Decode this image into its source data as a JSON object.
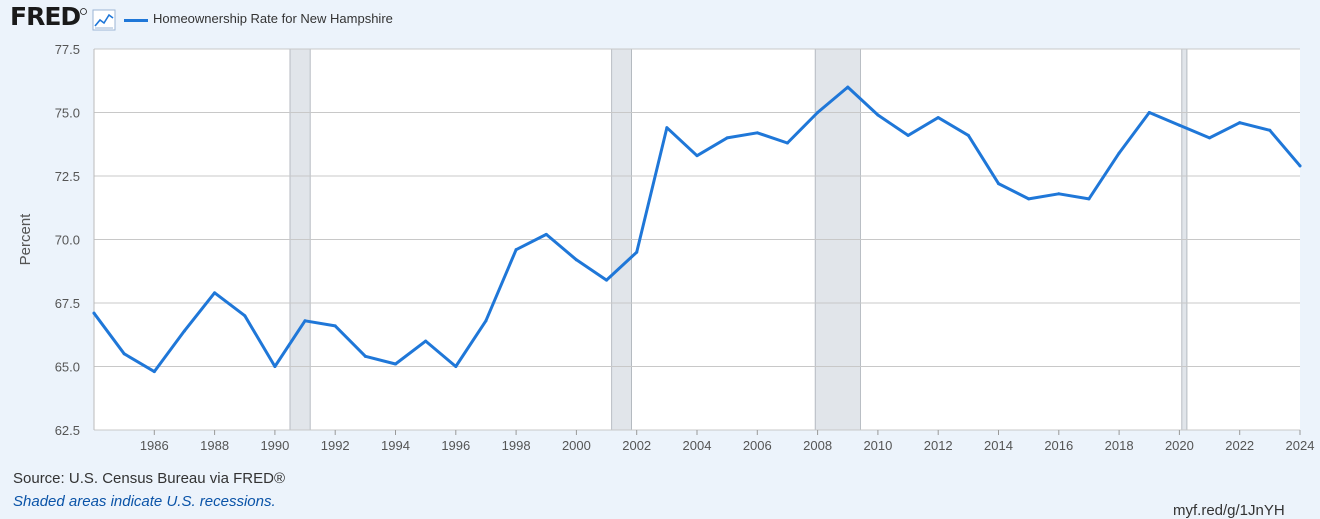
{
  "header": {
    "logo_text": "FRED",
    "series_label": "Homeownership Rate for New Hampshire"
  },
  "colors": {
    "line": "#1f77d8",
    "recession": "#e1e5ea",
    "grid": "#c8c8c8",
    "background": "#ecf3fb",
    "plot_background": "#ffffff"
  },
  "icons": {
    "logo_icon": "line-chart-icon"
  },
  "chart_data": {
    "type": "line",
    "title": "Homeownership Rate for New Hampshire",
    "xlabel": "",
    "ylabel": "Percent",
    "xlim": [
      1984,
      2024
    ],
    "ylim": [
      62.5,
      77.5
    ],
    "y_ticks": [
      "62.5",
      "65.0",
      "67.5",
      "70.0",
      "72.5",
      "75.0",
      "77.5"
    ],
    "x_ticks": [
      "1986",
      "1988",
      "1990",
      "1992",
      "1994",
      "1996",
      "1998",
      "2000",
      "2002",
      "2004",
      "2006",
      "2008",
      "2010",
      "2012",
      "2014",
      "2016",
      "2018",
      "2020",
      "2022",
      "2024"
    ],
    "grid": true,
    "legend": "top-left",
    "series": [
      {
        "name": "Homeownership Rate for New Hampshire",
        "x": [
          1984,
          1985,
          1986,
          1987,
          1988,
          1989,
          1990,
          1991,
          1992,
          1993,
          1994,
          1995,
          1996,
          1997,
          1998,
          1999,
          2000,
          2001,
          2002,
          2003,
          2004,
          2005,
          2006,
          2007,
          2008,
          2009,
          2010,
          2011,
          2012,
          2013,
          2014,
          2015,
          2016,
          2017,
          2018,
          2019,
          2020,
          2021,
          2022,
          2023,
          2024
        ],
        "values": [
          67.1,
          65.5,
          64.8,
          66.4,
          67.9,
          67.0,
          65.0,
          66.8,
          66.6,
          65.4,
          65.1,
          66.0,
          65.0,
          66.8,
          69.6,
          70.2,
          69.2,
          68.4,
          69.5,
          74.4,
          73.3,
          74.0,
          74.2,
          73.8,
          75.0,
          76.0,
          74.9,
          74.1,
          74.8,
          74.1,
          72.2,
          71.6,
          71.8,
          71.6,
          73.4,
          75.0,
          74.5,
          74.0,
          74.6,
          74.3,
          72.9
        ]
      }
    ],
    "recessions": [
      [
        1990.5,
        1991.17
      ],
      [
        2001.17,
        2001.83
      ],
      [
        2007.92,
        2009.42
      ],
      [
        2020.08,
        2020.25
      ]
    ]
  },
  "footer": {
    "source": "Source: U.S. Census Bureau via FRED®",
    "note": "Shaded areas indicate U.S. recessions.",
    "short_url": "myf.red/g/1JnYH"
  }
}
